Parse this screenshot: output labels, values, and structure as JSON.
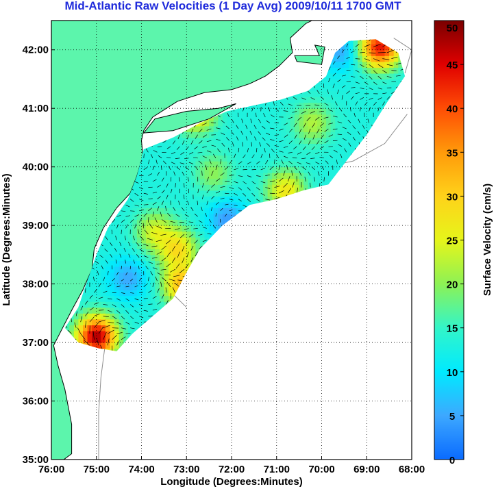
{
  "chart_data": {
    "type": "heatmap",
    "title": "Mid-Atlantic Raw Velocities (1 Day Avg) 2009/10/11 1700 GMT",
    "xlabel": "Longitude (Degrees:Minutes)",
    "ylabel": "Latitude (Degrees:Minutes)",
    "colorbar_label": "Surface Velocity (cm/s)",
    "x_ticks": [
      {
        "value": -76,
        "label": "76:00"
      },
      {
        "value": -75,
        "label": "75:00"
      },
      {
        "value": -74,
        "label": "74:00"
      },
      {
        "value": -73,
        "label": "73:00"
      },
      {
        "value": -72,
        "label": "72:00"
      },
      {
        "value": -71,
        "label": "71:00"
      },
      {
        "value": -70,
        "label": "70:00"
      },
      {
        "value": -69,
        "label": "69:00"
      },
      {
        "value": -68,
        "label": "68:00"
      }
    ],
    "y_ticks": [
      {
        "value": 35,
        "label": "35:00"
      },
      {
        "value": 36,
        "label": "36:00"
      },
      {
        "value": 37,
        "label": "37:00"
      },
      {
        "value": 38,
        "label": "38:00"
      },
      {
        "value": 39,
        "label": "39:00"
      },
      {
        "value": 40,
        "label": "40:00"
      },
      {
        "value": 41,
        "label": "41:00"
      },
      {
        "value": 42,
        "label": "42:00"
      }
    ],
    "xlim": [
      -76,
      -68
    ],
    "ylim": [
      35,
      42.5
    ],
    "colorbar_ticks": [
      0,
      5,
      10,
      15,
      20,
      25,
      30,
      35,
      40,
      45,
      50
    ],
    "clim": [
      0,
      50
    ],
    "grid": "dotted",
    "colors": {
      "land": "#5cf5ac",
      "title": "#1f2bdb",
      "coast": "#000000",
      "bathymetry": "#8c8c8c"
    },
    "velocity_field_hotspots": [
      {
        "lon": -75.0,
        "lat": 37.1,
        "speed": 48
      },
      {
        "lon": -68.7,
        "lat": 42.05,
        "speed": 44
      },
      {
        "lon": -73.1,
        "lat": 38.0,
        "speed": 32
      },
      {
        "lon": -73.2,
        "lat": 38.6,
        "speed": 28
      },
      {
        "lon": -73.7,
        "lat": 38.9,
        "speed": 24
      },
      {
        "lon": -72.8,
        "lat": 40.95,
        "speed": 30
      },
      {
        "lon": -70.2,
        "lat": 40.75,
        "speed": 22
      },
      {
        "lon": -70.8,
        "lat": 39.6,
        "speed": 27
      },
      {
        "lon": -72.4,
        "lat": 39.9,
        "speed": 20
      },
      {
        "lon": -74.3,
        "lat": 38.1,
        "speed": 5
      },
      {
        "lon": -72.1,
        "lat": 39.1,
        "speed": 4
      },
      {
        "lon": -69.6,
        "lat": 42.0,
        "speed": 5
      }
    ],
    "background_speed": 13
  }
}
